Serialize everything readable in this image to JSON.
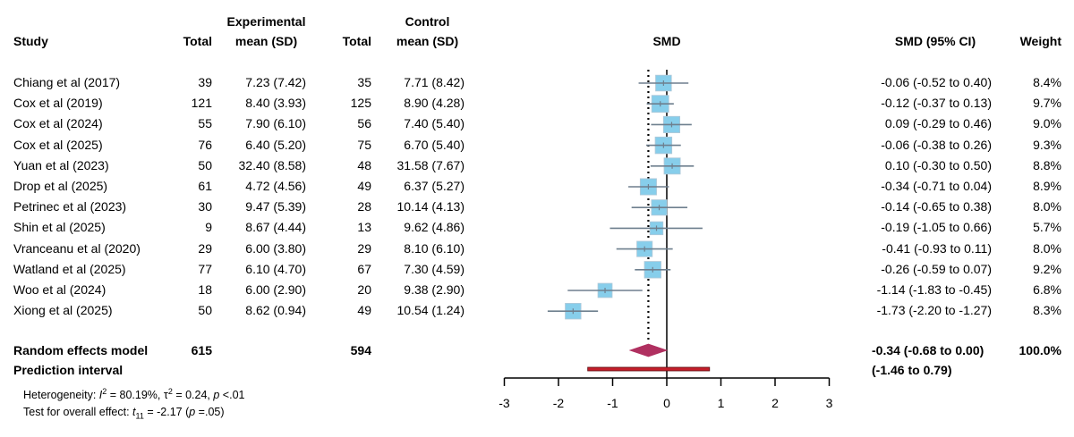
{
  "chart_data": {
    "type": "forest",
    "title": "",
    "effect_measure": "SMD",
    "headers": {
      "study": "Study",
      "exp_total": "Total",
      "exp_group_top": "Experimental",
      "exp_mean": "mean (SD)",
      "ctrl_total": "Total",
      "ctrl_group_top": "Control",
      "ctrl_mean": "mean (SD)",
      "plot": "SMD",
      "ci": "SMD (95% CI)",
      "weight": "Weight"
    },
    "studies": [
      {
        "name": "Chiang et al (2017)",
        "exp_total": "39",
        "exp_mean_sd": "7.23 (7.42)",
        "ctrl_total": "35",
        "ctrl_mean_sd": "7.71 (8.42)",
        "smd": -0.06,
        "lower": -0.52,
        "upper": 0.4,
        "ci_text": "-0.06 (-0.52 to 0.40)",
        "weight": 8.4,
        "weight_text": "8.4%"
      },
      {
        "name": "Cox et al (2019)",
        "exp_total": "121",
        "exp_mean_sd": "8.40 (3.93)",
        "ctrl_total": "125",
        "ctrl_mean_sd": "8.90 (4.28)",
        "smd": -0.12,
        "lower": -0.37,
        "upper": 0.13,
        "ci_text": "-0.12 (-0.37 to 0.13)",
        "weight": 9.7,
        "weight_text": "9.7%"
      },
      {
        "name": "Cox et al (2024)",
        "exp_total": "55",
        "exp_mean_sd": "7.90 (6.10)",
        "ctrl_total": "56",
        "ctrl_mean_sd": "7.40 (5.40)",
        "smd": 0.09,
        "lower": -0.29,
        "upper": 0.46,
        "ci_text": "0.09 (-0.29 to 0.46)",
        "weight": 9.0,
        "weight_text": "9.0%"
      },
      {
        "name": "Cox et al (2025)",
        "exp_total": "76",
        "exp_mean_sd": "6.40 (5.20)",
        "ctrl_total": "75",
        "ctrl_mean_sd": "6.70 (5.40)",
        "smd": -0.06,
        "lower": -0.38,
        "upper": 0.26,
        "ci_text": "-0.06 (-0.38 to 0.26)",
        "weight": 9.3,
        "weight_text": "9.3%"
      },
      {
        "name": "Yuan et al (2023)",
        "exp_total": "50",
        "exp_mean_sd": "32.40 (8.58)",
        "ctrl_total": "48",
        "ctrl_mean_sd": "31.58 (7.67)",
        "smd": 0.1,
        "lower": -0.3,
        "upper": 0.5,
        "ci_text": "0.10 (-0.30 to 0.50)",
        "weight": 8.8,
        "weight_text": "8.8%"
      },
      {
        "name": "Drop et al (2025)",
        "exp_total": "61",
        "exp_mean_sd": "4.72 (4.56)",
        "ctrl_total": "49",
        "ctrl_mean_sd": "6.37 (5.27)",
        "smd": -0.34,
        "lower": -0.71,
        "upper": 0.04,
        "ci_text": "-0.34 (-0.71 to 0.04)",
        "weight": 8.9,
        "weight_text": "8.9%"
      },
      {
        "name": "Petrinec et al (2023)",
        "exp_total": "30",
        "exp_mean_sd": "9.47 (5.39)",
        "ctrl_total": "28",
        "ctrl_mean_sd": "10.14 (4.13)",
        "smd": -0.14,
        "lower": -0.65,
        "upper": 0.38,
        "ci_text": "-0.14 (-0.65 to 0.38)",
        "weight": 8.0,
        "weight_text": "8.0%"
      },
      {
        "name": "Shin et al (2025)",
        "exp_total": "9",
        "exp_mean_sd": "8.67 (4.44)",
        "ctrl_total": "13",
        "ctrl_mean_sd": "9.62 (4.86)",
        "smd": -0.19,
        "lower": -1.05,
        "upper": 0.66,
        "ci_text": "-0.19 (-1.05 to 0.66)",
        "weight": 5.7,
        "weight_text": "5.7%"
      },
      {
        "name": "Vranceanu et al (2020)",
        "exp_total": "29",
        "exp_mean_sd": "6.00 (3.80)",
        "ctrl_total": "29",
        "ctrl_mean_sd": "8.10 (6.10)",
        "smd": -0.41,
        "lower": -0.93,
        "upper": 0.11,
        "ci_text": "-0.41 (-0.93 to 0.11)",
        "weight": 8.0,
        "weight_text": "8.0%"
      },
      {
        "name": "Watland et al (2025)",
        "exp_total": "77",
        "exp_mean_sd": "6.10 (4.70)",
        "ctrl_total": "67",
        "ctrl_mean_sd": "7.30 (4.59)",
        "smd": -0.26,
        "lower": -0.59,
        "upper": 0.07,
        "ci_text": "-0.26 (-0.59 to 0.07)",
        "weight": 9.2,
        "weight_text": "9.2%"
      },
      {
        "name": "Woo et al (2024)",
        "exp_total": "18",
        "exp_mean_sd": "6.00 (2.90)",
        "ctrl_total": "20",
        "ctrl_mean_sd": "9.38 (2.90)",
        "smd": -1.14,
        "lower": -1.83,
        "upper": -0.45,
        "ci_text": "-1.14 (-1.83 to -0.45)",
        "weight": 6.8,
        "weight_text": "6.8%"
      },
      {
        "name": "Xiong et al (2025)",
        "exp_total": "50",
        "exp_mean_sd": "8.62 (0.94)",
        "ctrl_total": "49",
        "ctrl_mean_sd": "10.54 (1.24)",
        "smd": -1.73,
        "lower": -2.2,
        "upper": -1.27,
        "ci_text": "-1.73 (-2.20 to -1.27)",
        "weight": 8.3,
        "weight_text": "8.3%"
      }
    ],
    "random_effects": {
      "label": "Random effects model",
      "exp_total": "615",
      "ctrl_total": "594",
      "smd": -0.34,
      "lower": -0.68,
      "upper": 0.0,
      "ci_text": "-0.34 (-0.68 to 0.00)",
      "weight_text": "100.0%"
    },
    "prediction_interval": {
      "label": "Prediction interval",
      "lower": -1.46,
      "upper": 0.79,
      "ci_text": "(-1.46 to 0.79)"
    },
    "heterogeneity": {
      "prefix": "Heterogeneity: ",
      "i2_label": "I",
      "i2_value": " = 80.19%, ",
      "tau_label": "τ",
      "tau_value": " = 0.24, ",
      "p_label": "p",
      "p_value": " <.01"
    },
    "overall_test": {
      "prefix": "Test for overall effect: ",
      "t_label": "t",
      "t_df": "11",
      "t_value": " = -2.17 (",
      "p_label": "p",
      "p_value": " =.05)"
    },
    "xaxis": {
      "range": [
        -3,
        3
      ],
      "ticks": [
        -3,
        -2,
        -1,
        0,
        1,
        2,
        3
      ],
      "tick_labels": [
        "-3",
        "-2",
        "-1",
        "0",
        "1",
        "2",
        "3"
      ],
      "null_line": 0,
      "reference_line": -0.34
    },
    "colors": {
      "study_box": "#87ceeb",
      "study_box_border": "#b0c8d8",
      "ci_line": "#6e7f8e",
      "diamond": "#b03060",
      "prediction_bar": "#c41e2a",
      "axis": "#000000"
    }
  }
}
